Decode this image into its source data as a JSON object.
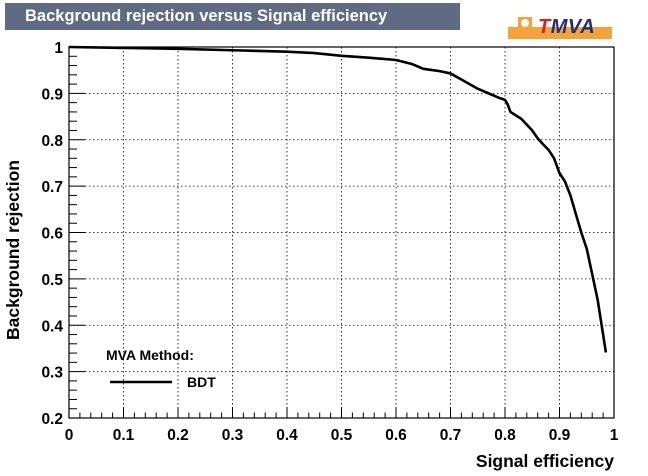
{
  "chart_data": {
    "type": "line",
    "title": "Background rejection versus Signal efficiency",
    "xlabel": "Signal efficiency",
    "ylabel": "Background rejection",
    "xlim": [
      0,
      1
    ],
    "ylim": [
      0.2,
      1
    ],
    "grid": true,
    "xticks": [
      "0",
      "0.1",
      "0.2",
      "0.3",
      "0.4",
      "0.5",
      "0.6",
      "0.7",
      "0.8",
      "0.9",
      "1"
    ],
    "xtick_values": [
      0,
      0.1,
      0.2,
      0.3,
      0.4,
      0.5,
      0.6,
      0.7,
      0.8,
      0.9,
      1
    ],
    "yticks": [
      "0.2",
      "0.3",
      "0.4",
      "0.5",
      "0.6",
      "0.7",
      "0.8",
      "0.9",
      "1"
    ],
    "ytick_values": [
      0.2,
      0.3,
      0.4,
      0.5,
      0.6,
      0.7,
      0.8,
      0.9,
      1
    ],
    "legend": {
      "title": "MVA Method:",
      "entries": [
        "BDT"
      ],
      "placement": "bottom-left"
    },
    "series": [
      {
        "name": "BDT",
        "color": "#000000",
        "x": [
          0.0,
          0.1,
          0.2,
          0.3,
          0.4,
          0.45,
          0.5,
          0.55,
          0.6,
          0.63,
          0.65,
          0.68,
          0.7,
          0.72,
          0.75,
          0.77,
          0.79,
          0.8,
          0.805,
          0.81,
          0.83,
          0.85,
          0.86,
          0.87,
          0.88,
          0.89,
          0.9,
          0.91,
          0.92,
          0.93,
          0.94,
          0.95,
          0.96,
          0.97,
          0.98,
          0.985
        ],
        "y": [
          1.0,
          0.998,
          0.996,
          0.993,
          0.99,
          0.987,
          0.981,
          0.977,
          0.972,
          0.963,
          0.953,
          0.948,
          0.943,
          0.93,
          0.91,
          0.9,
          0.89,
          0.886,
          0.876,
          0.86,
          0.845,
          0.82,
          0.803,
          0.79,
          0.778,
          0.76,
          0.728,
          0.71,
          0.68,
          0.64,
          0.6,
          0.565,
          0.51,
          0.455,
          0.38,
          0.342
        ]
      }
    ]
  },
  "logo": {
    "t": "T",
    "rest": "MVA"
  }
}
